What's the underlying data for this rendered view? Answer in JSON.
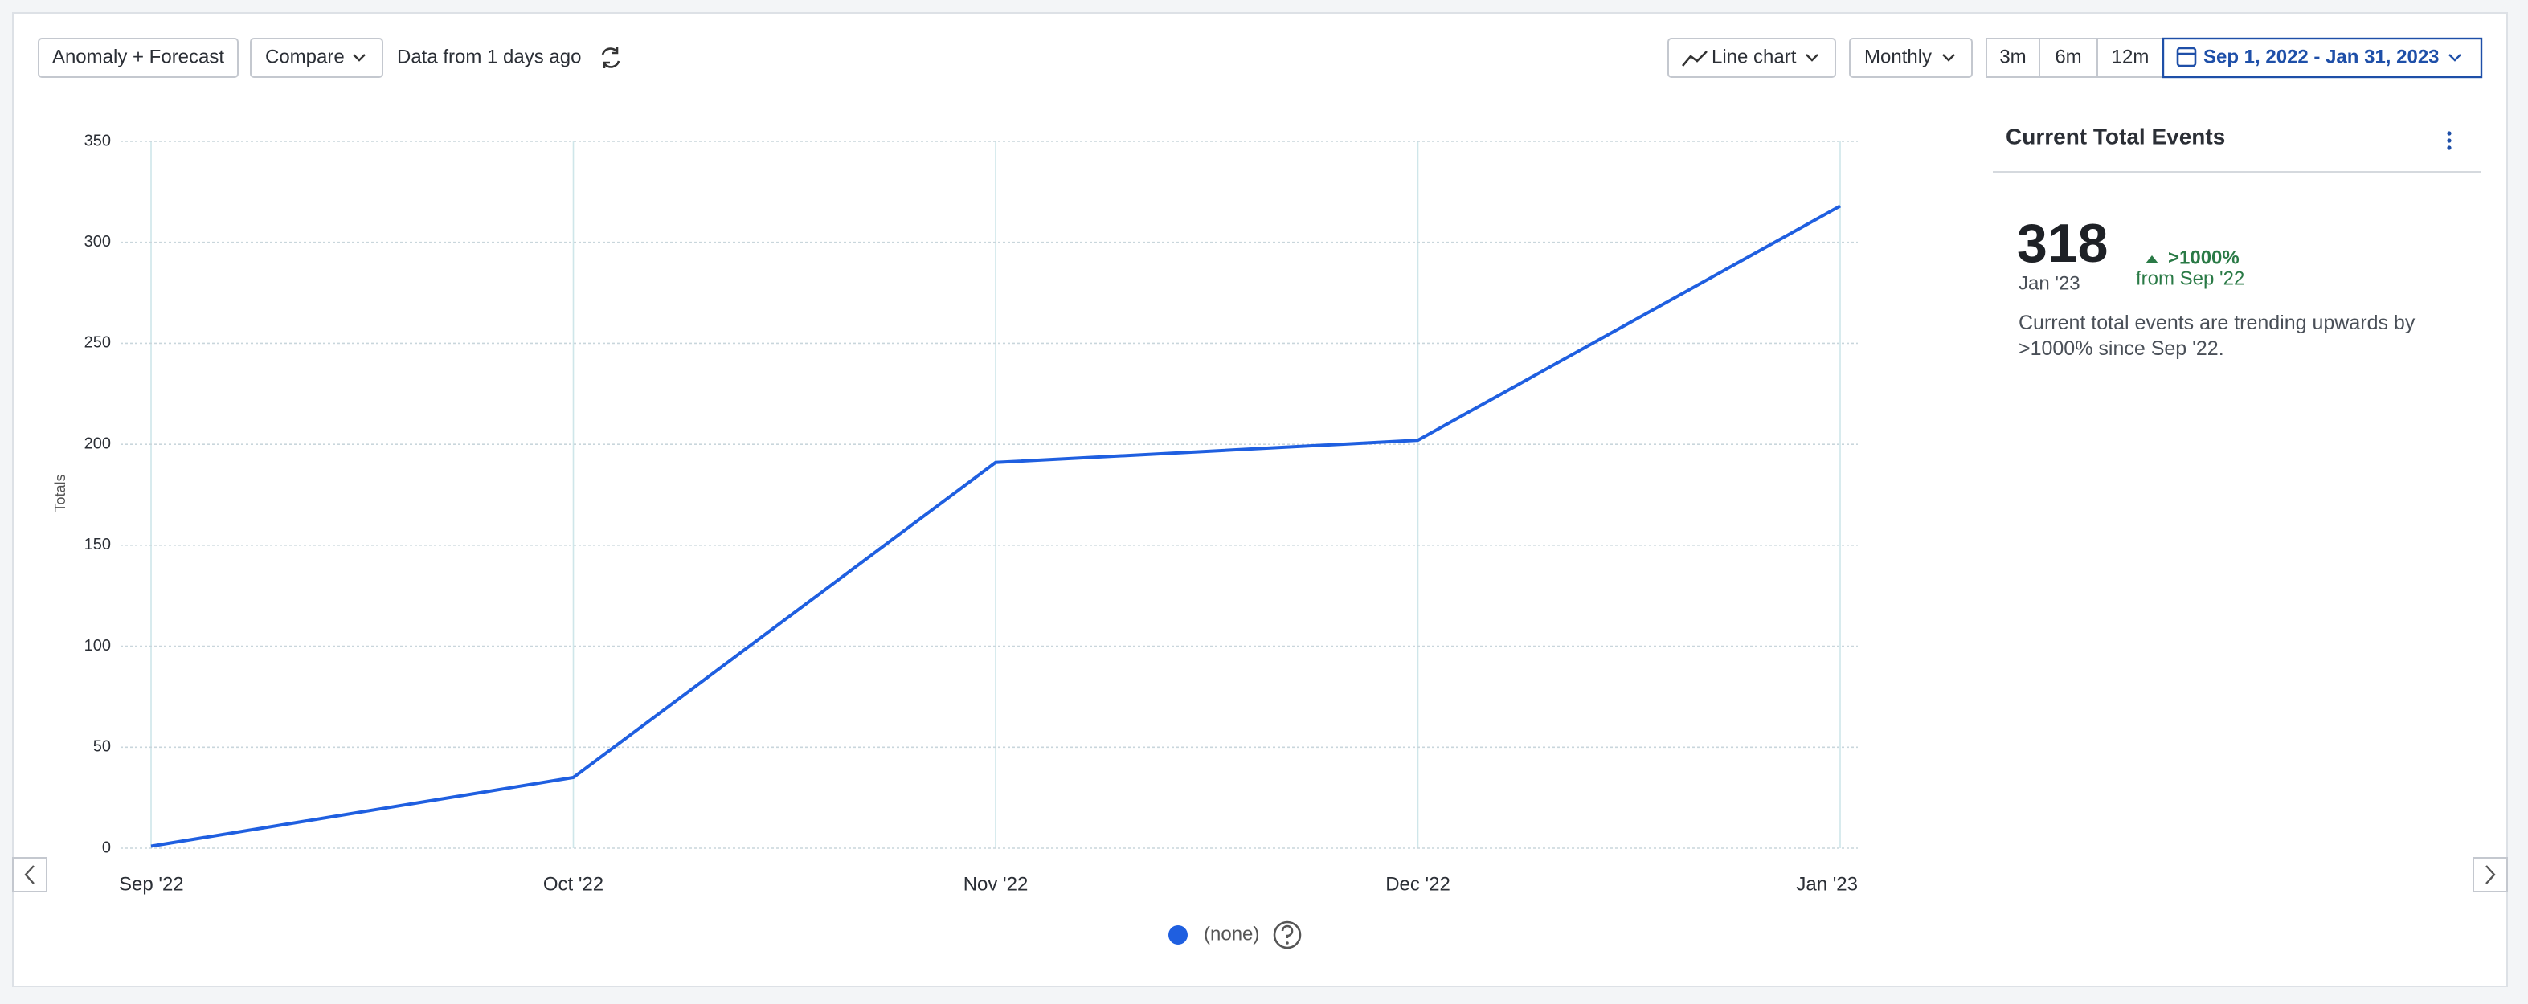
{
  "toolbar": {
    "anomaly_forecast": "Anomaly + Forecast",
    "compare": "Compare",
    "data_freshness": "Data from 1 days ago",
    "chart_type": "Line chart",
    "interval": "Monthly",
    "ranges": [
      "3m",
      "6m",
      "12m"
    ],
    "date_range": "Sep 1, 2022 - Jan 31, 2023"
  },
  "chart_data": {
    "type": "line",
    "y_label": "Totals",
    "categories": [
      "Sep '22",
      "Oct '22",
      "Nov '22",
      "Dec '22",
      "Jan '23"
    ],
    "series": [
      {
        "name": "(none)",
        "color": "#1f5fe0",
        "values": [
          1,
          35,
          191,
          202,
          318
        ]
      }
    ],
    "ylim": [
      0,
      350
    ],
    "yticks": [
      0,
      50,
      100,
      150,
      200,
      250,
      300,
      350
    ],
    "grid": true
  },
  "panel": {
    "title": "Current Total Events",
    "value": "318",
    "period": "Jan '23",
    "change": ">1000%",
    "change_from": "from Sep '22",
    "description": "Current total events are trending upwards by >1000% since Sep '22."
  }
}
